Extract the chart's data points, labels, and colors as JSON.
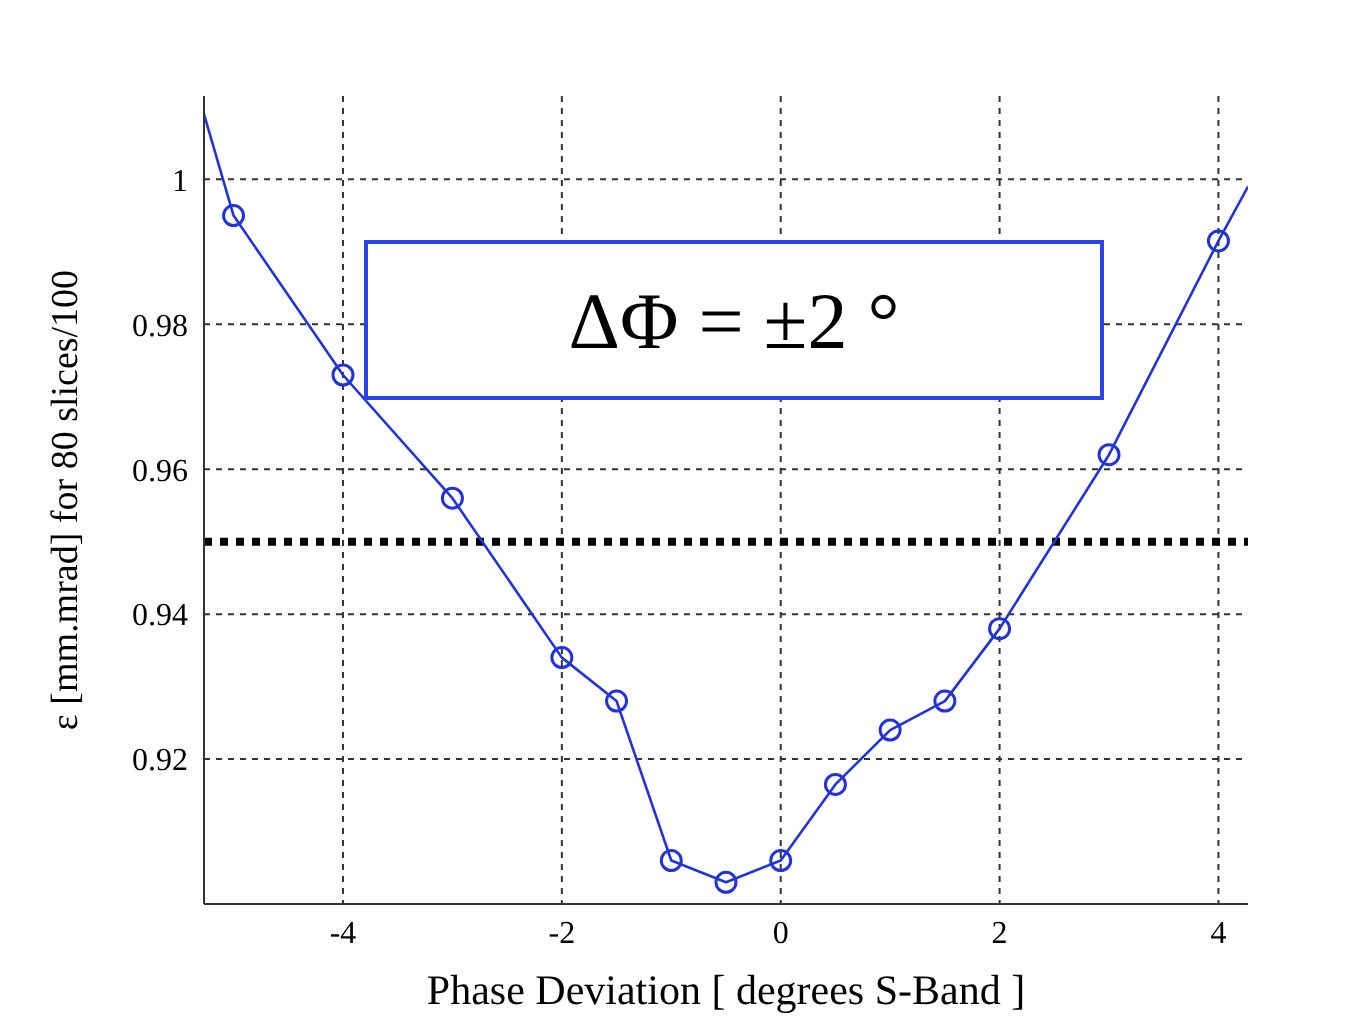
{
  "chart_data": {
    "type": "line",
    "xlabel": "Phase Deviation  [ degrees S-Band  ]",
    "ylabel": "ε [mm.mrad] for 80 slices/100",
    "annotations": [
      "ΔΦ = ±2 °"
    ],
    "xlim": [
      -5.27,
      4.27
    ],
    "ylim": [
      0.9,
      1.0115
    ],
    "xticks": [
      -4,
      -2,
      0,
      2,
      4
    ],
    "yticks": [
      {
        "value": 0.9,
        "label": null
      },
      0.92,
      0.94,
      0.96,
      0.98,
      1
    ],
    "grid": true,
    "line_style": "solid",
    "series": [
      {
        "marker": "none",
        "color": "#2233dd",
        "x": [
          -5.27,
          -5,
          -4,
          -3,
          -2,
          -1.5,
          -1,
          -0.5,
          0,
          0.5,
          1,
          1.5,
          2,
          3,
          4,
          4.27
        ],
        "values": [
          1.009,
          0.995,
          0.973,
          0.956,
          0.934,
          0.928,
          0.906,
          0.903,
          0.906,
          0.9165,
          0.924,
          0.928,
          0.938,
          0.962,
          0.9915,
          0.999
        ]
      },
      {
        "type": "scatter",
        "marker": "circle",
        "color": "#2233dd",
        "x": [
          -5,
          -4,
          -3,
          -2,
          -1.5,
          -1,
          -0.5,
          0,
          0.5,
          1,
          1.5,
          2,
          3,
          4
        ],
        "values": [
          0.995,
          0.973,
          0.956,
          0.934,
          0.928,
          0.906,
          0.903,
          0.906,
          0.9165,
          0.924,
          0.928,
          0.938,
          0.962,
          0.9915
        ]
      }
    ],
    "ref_lines": [
      {
        "axis": "y",
        "value": 0.95,
        "label": null,
        "color": "#000000",
        "line_style": "dotted"
      }
    ]
  }
}
